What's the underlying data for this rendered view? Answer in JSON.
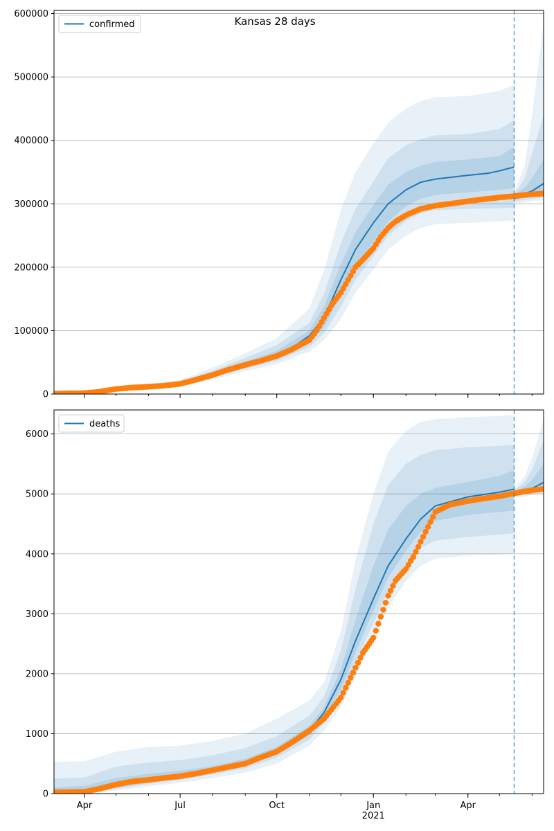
{
  "figure": {
    "title": "Kansas 28 days"
  },
  "colors": {
    "model": "#1f77b4",
    "observed": "#ff7f0e",
    "band": "#1f77b4",
    "grid": "#b0b0b0",
    "forecast_start": "#1f77b4"
  },
  "chart_data": [
    {
      "type": "line",
      "name": "confirmed-panel",
      "legend": {
        "label": "confirmed",
        "placement": "top-left"
      },
      "x_axis": {
        "ticks": [
          {
            "date": "2020-04-01",
            "label": "Apr"
          },
          {
            "date": "2020-07-01",
            "label": "Jul"
          },
          {
            "date": "2020-10-01",
            "label": "Oct"
          },
          {
            "date": "2021-01-01",
            "label": "Jan"
          },
          {
            "date": "2021-04-01",
            "label": "Apr"
          }
        ],
        "show_labels": false,
        "xlim": [
          "2020-03-03",
          "2021-06-12"
        ]
      },
      "y_axis": {
        "ylim": [
          0,
          605000
        ],
        "ticks": [
          0,
          100000,
          200000,
          300000,
          400000,
          500000,
          600000
        ],
        "grid": true
      },
      "forecast_start": "2021-05-15",
      "model_fit": {
        "x": [
          "2020-03-03",
          "2020-04-01",
          "2020-05-01",
          "2020-06-01",
          "2020-07-01",
          "2020-08-01",
          "2020-09-01",
          "2020-10-01",
          "2020-10-20",
          "2020-11-01",
          "2020-11-15",
          "2020-12-01",
          "2020-12-15",
          "2021-01-01",
          "2021-01-15",
          "2021-02-01",
          "2021-02-15",
          "2021-03-01",
          "2021-04-01",
          "2021-04-20",
          "2021-05-01",
          "2021-05-15"
        ],
        "y": [
          1000,
          2500,
          8000,
          12000,
          17000,
          30000,
          47000,
          62000,
          78000,
          92000,
          120000,
          180000,
          228000,
          270000,
          300000,
          322000,
          334000,
          339000,
          345000,
          348000,
          352000,
          358000
        ]
      },
      "model_fit_forecast": {
        "x": [
          "2021-05-15",
          "2021-05-25",
          "2021-06-01",
          "2021-06-12"
        ],
        "y": [
          311000,
          316000,
          320000,
          332000
        ]
      },
      "bands": [
        {
          "x": [
            "2020-03-03",
            "2020-04-01",
            "2020-05-01",
            "2020-06-01",
            "2020-07-01",
            "2020-08-01",
            "2020-09-01",
            "2020-10-01",
            "2020-11-01",
            "2020-11-15",
            "2020-12-01",
            "2020-12-15",
            "2021-01-01",
            "2021-01-15",
            "2021-02-01",
            "2021-02-15",
            "2021-03-01",
            "2021-04-01",
            "2021-05-01",
            "2021-05-15"
          ],
          "lower": [
            0,
            1000,
            6000,
            9000,
            13000,
            23000,
            36000,
            47000,
            67000,
            85000,
            118000,
            160000,
            196000,
            228000,
            250000,
            262000,
            268000,
            270000,
            272000,
            274000
          ],
          "upper": [
            2000,
            4000,
            12000,
            16000,
            22000,
            42000,
            64000,
            88000,
            135000,
            195000,
            290000,
            350000,
            395000,
            428000,
            450000,
            462000,
            468000,
            470000,
            478000,
            488000
          ]
        },
        {
          "x": [
            "2020-03-03",
            "2020-04-01",
            "2020-05-01",
            "2020-06-01",
            "2020-07-01",
            "2020-08-01",
            "2020-09-01",
            "2020-10-01",
            "2020-11-01",
            "2020-11-15",
            "2020-12-01",
            "2020-12-15",
            "2021-01-01",
            "2021-01-15",
            "2021-02-01",
            "2021-02-15",
            "2021-03-01",
            "2021-04-01",
            "2021-05-01",
            "2021-05-15"
          ],
          "lower": [
            0,
            1500,
            7000,
            10000,
            14500,
            26000,
            40000,
            52000,
            74000,
            96000,
            138000,
            180000,
            218000,
            250000,
            273000,
            285000,
            290000,
            292000,
            293000,
            294000
          ],
          "upper": [
            1500,
            3500,
            10500,
            14500,
            20000,
            37000,
            57000,
            77000,
            112000,
            158000,
            238000,
            292000,
            335000,
            372000,
            392000,
            402000,
            408000,
            410000,
            418000,
            432000
          ]
        },
        {
          "x": [
            "2020-03-03",
            "2020-04-01",
            "2020-05-01",
            "2020-06-01",
            "2020-07-01",
            "2020-08-01",
            "2020-09-01",
            "2020-10-01",
            "2020-11-01",
            "2020-11-15",
            "2020-12-01",
            "2020-12-15",
            "2021-01-01",
            "2021-01-15",
            "2021-02-01",
            "2021-02-15",
            "2021-03-01",
            "2021-04-01",
            "2021-05-01",
            "2021-05-15"
          ],
          "lower": [
            500,
            2000,
            7500,
            11000,
            15500,
            28000,
            43000,
            56000,
            82000,
            106000,
            155000,
            200000,
            240000,
            272000,
            296000,
            308000,
            314000,
            318000,
            322000,
            325000
          ],
          "upper": [
            1200,
            3000,
            9000,
            13000,
            18500,
            33000,
            51000,
            68000,
            100000,
            138000,
            205000,
            255000,
            298000,
            330000,
            350000,
            360000,
            366000,
            370000,
            375000,
            390000
          ]
        }
      ],
      "forecast_bands": [
        {
          "x": [
            "2021-05-15",
            "2021-05-25",
            "2021-06-01",
            "2021-06-12"
          ],
          "lower": [
            300000,
            302000,
            304000,
            306000
          ],
          "upper": [
            318000,
            360000,
            440000,
            585000
          ]
        },
        {
          "x": [
            "2021-05-15",
            "2021-05-25",
            "2021-06-01",
            "2021-06-12"
          ],
          "lower": [
            303000,
            306000,
            308000,
            310000
          ],
          "upper": [
            316000,
            340000,
            380000,
            440000
          ]
        },
        {
          "x": [
            "2021-05-15",
            "2021-05-25",
            "2021-06-01",
            "2021-06-12"
          ],
          "lower": [
            306000,
            310000,
            312000,
            316000
          ],
          "upper": [
            314000,
            326000,
            340000,
            370000
          ]
        }
      ],
      "observed": {
        "x": [
          "2020-03-03",
          "2020-04-01",
          "2020-04-15",
          "2020-05-01",
          "2020-05-15",
          "2020-06-01",
          "2020-06-15",
          "2020-07-01",
          "2020-07-15",
          "2020-08-01",
          "2020-08-15",
          "2020-09-01",
          "2020-09-15",
          "2020-10-01",
          "2020-10-15",
          "2020-11-01",
          "2020-11-08",
          "2020-11-15",
          "2020-11-22",
          "2020-12-01",
          "2020-12-08",
          "2020-12-15",
          "2020-12-22",
          "2021-01-01",
          "2021-01-08",
          "2021-01-15",
          "2021-01-22",
          "2021-02-01",
          "2021-02-15",
          "2021-03-01",
          "2021-03-15",
          "2021-04-01",
          "2021-04-15",
          "2021-05-01",
          "2021-05-15",
          "2021-05-25",
          "2021-06-01",
          "2021-06-12"
        ],
        "y": [
          500,
          1500,
          3500,
          8000,
          10000,
          11500,
          13000,
          16000,
          22000,
          30000,
          38000,
          46000,
          52000,
          60000,
          70000,
          85000,
          100000,
          120000,
          140000,
          160000,
          180000,
          200000,
          212000,
          230000,
          248000,
          262000,
          272000,
          282000,
          292000,
          297000,
          300000,
          304000,
          307000,
          310000,
          312000,
          314000,
          315000,
          316000
        ]
      }
    },
    {
      "type": "line",
      "name": "deaths-panel",
      "legend": {
        "label": "deaths",
        "placement": "top-left"
      },
      "x_axis": {
        "ticks": [
          {
            "date": "2020-04-01",
            "label": "Apr"
          },
          {
            "date": "2020-07-01",
            "label": "Jul"
          },
          {
            "date": "2020-10-01",
            "label": "Oct"
          },
          {
            "date": "2021-01-01",
            "label": "Jan"
          },
          {
            "date": "2021-04-01",
            "label": "Apr"
          }
        ],
        "year_label": {
          "date": "2021-01-01",
          "label": "2021"
        },
        "show_labels": true,
        "xlim": [
          "2020-03-03",
          "2021-06-12"
        ]
      },
      "y_axis": {
        "ylim": [
          0,
          6400
        ],
        "ticks": [
          0,
          1000,
          2000,
          3000,
          4000,
          5000,
          6000
        ],
        "grid": true
      },
      "forecast_start": "2021-05-15",
      "model_fit": {
        "x": [
          "2020-03-03",
          "2020-04-01",
          "2020-05-01",
          "2020-06-01",
          "2020-07-01",
          "2020-08-01",
          "2020-09-01",
          "2020-10-01",
          "2020-10-20",
          "2020-11-01",
          "2020-11-15",
          "2020-12-01",
          "2020-12-15",
          "2021-01-01",
          "2021-01-15",
          "2021-02-01",
          "2021-02-15",
          "2021-03-01",
          "2021-04-01",
          "2021-04-20",
          "2021-05-01",
          "2021-05-15"
        ],
        "y": [
          20,
          40,
          130,
          210,
          290,
          390,
          500,
          700,
          900,
          1050,
          1350,
          1900,
          2550,
          3250,
          3800,
          4250,
          4580,
          4800,
          4950,
          5000,
          5030,
          5080
        ]
      },
      "model_fit_forecast": {
        "x": [
          "2021-05-15",
          "2021-05-25",
          "2021-06-01",
          "2021-06-12"
        ],
        "y": [
          5010,
          5040,
          5090,
          5190
        ]
      },
      "bands": [
        {
          "x": [
            "2020-03-03",
            "2020-04-01",
            "2020-05-01",
            "2020-06-01",
            "2020-07-01",
            "2020-08-01",
            "2020-09-01",
            "2020-10-01",
            "2020-11-01",
            "2020-11-15",
            "2020-12-01",
            "2020-12-15",
            "2021-01-01",
            "2021-01-15",
            "2021-02-01",
            "2021-02-15",
            "2021-03-01",
            "2021-04-01",
            "2021-05-01",
            "2021-05-15"
          ],
          "lower": [
            0,
            0,
            50,
            120,
            180,
            260,
            350,
            500,
            800,
            1050,
            1450,
            1950,
            2600,
            3100,
            3550,
            3800,
            3920,
            3970,
            3990,
            4000
          ],
          "upper": [
            530,
            540,
            700,
            780,
            800,
            880,
            1000,
            1250,
            1550,
            1850,
            2700,
            3900,
            5000,
            5700,
            6050,
            6200,
            6250,
            6280,
            6300,
            6320
          ]
        },
        {
          "x": [
            "2020-03-03",
            "2020-04-01",
            "2020-05-01",
            "2020-06-01",
            "2020-07-01",
            "2020-08-01",
            "2020-09-01",
            "2020-10-01",
            "2020-11-01",
            "2020-11-15",
            "2020-12-01",
            "2020-12-15",
            "2021-01-01",
            "2021-01-15",
            "2021-02-01",
            "2021-02-15",
            "2021-03-01",
            "2021-04-01",
            "2021-05-01",
            "2021-05-15"
          ],
          "lower": [
            0,
            10,
            80,
            160,
            230,
            320,
            420,
            600,
            900,
            1180,
            1620,
            2180,
            2850,
            3380,
            3850,
            4100,
            4220,
            4280,
            4320,
            4340
          ],
          "upper": [
            250,
            270,
            450,
            520,
            560,
            640,
            760,
            960,
            1300,
            1620,
            2380,
            3420,
            4500,
            5150,
            5500,
            5650,
            5730,
            5780,
            5800,
            5820
          ]
        },
        {
          "x": [
            "2020-03-03",
            "2020-04-01",
            "2020-05-01",
            "2020-06-01",
            "2020-07-01",
            "2020-08-01",
            "2020-09-01",
            "2020-10-01",
            "2020-11-01",
            "2020-11-15",
            "2020-12-01",
            "2020-12-15",
            "2021-01-01",
            "2021-01-15",
            "2021-02-01",
            "2021-02-15",
            "2021-03-01",
            "2021-04-01",
            "2021-05-01",
            "2021-05-15"
          ],
          "lower": [
            10,
            20,
            100,
            180,
            260,
            350,
            460,
            650,
            970,
            1260,
            1740,
            2350,
            3050,
            3600,
            4050,
            4370,
            4550,
            4650,
            4700,
            4720
          ],
          "upper": [
            100,
            130,
            260,
            330,
            380,
            460,
            580,
            780,
            1130,
            1440,
            2080,
            2900,
            3800,
            4400,
            4800,
            5000,
            5100,
            5200,
            5300,
            5400
          ]
        }
      ],
      "forecast_bands": [
        {
          "x": [
            "2021-05-15",
            "2021-05-25",
            "2021-06-01",
            "2021-06-12"
          ],
          "lower": [
            4940,
            4960,
            4980,
            5000
          ],
          "upper": [
            5080,
            5300,
            5600,
            6250
          ]
        },
        {
          "x": [
            "2021-05-15",
            "2021-05-25",
            "2021-06-01",
            "2021-06-12"
          ],
          "lower": [
            4970,
            4990,
            5010,
            5040
          ],
          "upper": [
            5060,
            5200,
            5400,
            5900
          ]
        },
        {
          "x": [
            "2021-05-15",
            "2021-05-25",
            "2021-06-01",
            "2021-06-12"
          ],
          "lower": [
            4990,
            5010,
            5040,
            5080
          ],
          "upper": [
            5040,
            5120,
            5230,
            5500
          ]
        }
      ],
      "observed": {
        "x": [
          "2020-03-03",
          "2020-04-01",
          "2020-04-15",
          "2020-05-01",
          "2020-05-15",
          "2020-06-01",
          "2020-06-15",
          "2020-07-01",
          "2020-07-15",
          "2020-08-01",
          "2020-08-15",
          "2020-09-01",
          "2020-09-15",
          "2020-10-01",
          "2020-10-15",
          "2020-11-01",
          "2020-11-08",
          "2020-11-15",
          "2020-11-22",
          "2020-12-01",
          "2020-12-08",
          "2020-12-15",
          "2020-12-22",
          "2021-01-01",
          "2021-01-08",
          "2021-01-15",
          "2021-01-22",
          "2021-02-01",
          "2021-02-08",
          "2021-02-15",
          "2021-02-22",
          "2021-03-01",
          "2021-03-15",
          "2021-04-01",
          "2021-04-15",
          "2021-05-01",
          "2021-05-15",
          "2021-05-25",
          "2021-06-01",
          "2021-06-12"
        ],
        "y": [
          20,
          30,
          80,
          150,
          200,
          230,
          260,
          290,
          330,
          390,
          440,
          500,
          600,
          700,
          850,
          1050,
          1150,
          1250,
          1400,
          1600,
          1850,
          2100,
          2350,
          2600,
          2950,
          3300,
          3550,
          3750,
          3950,
          4200,
          4450,
          4700,
          4820,
          4880,
          4920,
          4960,
          5010,
          5040,
          5060,
          5080
        ]
      }
    }
  ]
}
